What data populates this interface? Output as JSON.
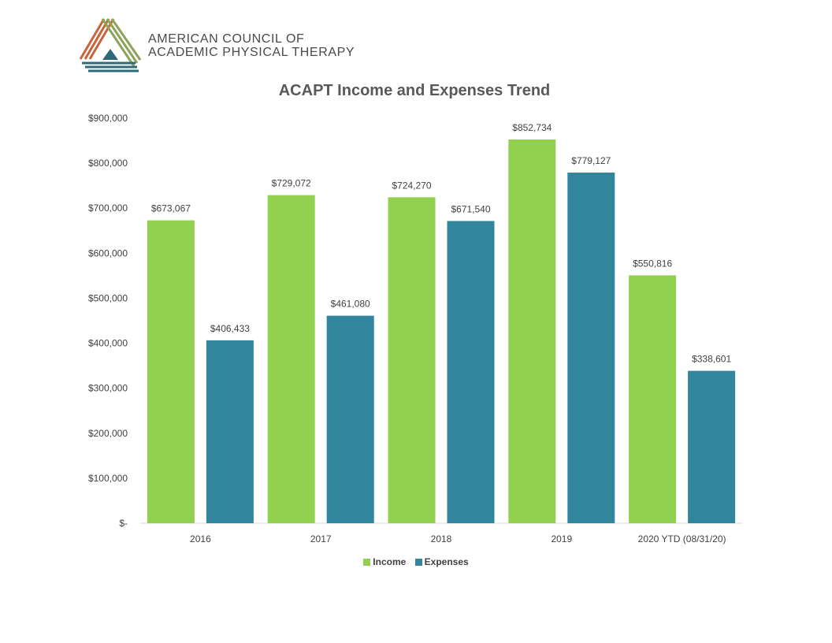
{
  "header": {
    "org_line1": "AMERICAN COUNCIL OF",
    "org_line2": "ACADEMIC PHYSICAL THERAPY"
  },
  "colors": {
    "income": "#92d050",
    "expenses": "#31859c",
    "axis_text": "#404040"
  },
  "chart_data": {
    "type": "bar",
    "title": "ACAPT Income and Expenses Trend",
    "categories": [
      "2016",
      "2017",
      "2018",
      "2019",
      "2020 YTD (08/31/20)"
    ],
    "series": [
      {
        "name": "Income",
        "values": [
          673067,
          729072,
          724270,
          852734,
          550816
        ],
        "labels": [
          "$673,067",
          "$729,072",
          "$724,270",
          "$852,734",
          "$550,816"
        ]
      },
      {
        "name": "Expenses",
        "values": [
          406433,
          461080,
          671540,
          779127,
          338601
        ],
        "labels": [
          "$406,433",
          "$461,080",
          "$671,540",
          "$779,127",
          "$338,601"
        ]
      }
    ],
    "ylim": [
      0,
      900000
    ],
    "yticks": [
      0,
      100000,
      200000,
      300000,
      400000,
      500000,
      600000,
      700000,
      800000,
      900000
    ],
    "ytick_labels": [
      "$-",
      "$100,000",
      "$200,000",
      "$300,000",
      "$400,000",
      "$500,000",
      "$600,000",
      "$700,000",
      "$800,000",
      "$900,000"
    ],
    "xlabel": "",
    "ylabel": "",
    "grid": false,
    "legend_position": "bottom"
  }
}
